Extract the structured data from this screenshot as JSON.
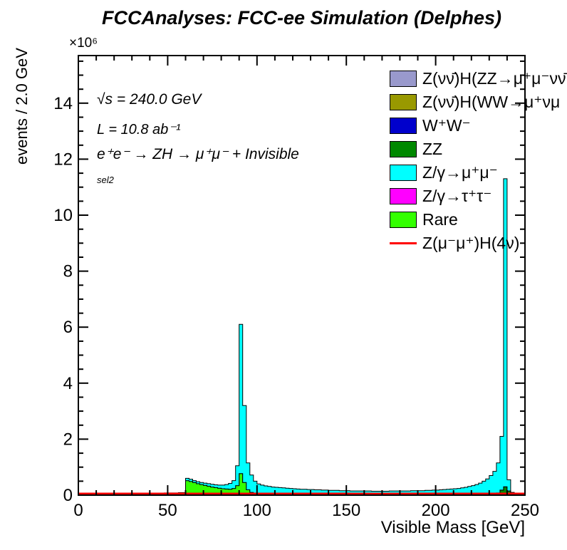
{
  "title": "FCCAnalyses: FCC-ee Simulation (Delphes)",
  "annotations": {
    "energy": "√s = 240.0 GeV",
    "luminosity": "L = 10.8 ab⁻¹",
    "process": "e⁺e⁻ → ZH → μ⁺μ⁻ + Invisible",
    "selection": "sel2"
  },
  "chart_data": {
    "type": "bar",
    "subtype": "stacked-step-histogram",
    "bin_width": 2.0,
    "x_start": 0,
    "n_bins": 125,
    "y_unit_scale": "×10⁶",
    "axes": {
      "x_label": "Visible Mass [GeV]",
      "y_label": "events / 2.0 GeV",
      "y_exponent": "×10⁶",
      "x_range": [
        0,
        250
      ],
      "y_range": [
        0,
        15.7
      ],
      "x_ticks": [
        0,
        50,
        100,
        150,
        200,
        250
      ],
      "x_tick_labels": [
        "0",
        "50",
        "100",
        "150",
        "200",
        "250"
      ],
      "x_minor_step": 10,
      "y_ticks": [
        0,
        2,
        4,
        6,
        8,
        10,
        12,
        14
      ],
      "y_tick_labels": [
        "0",
        "2",
        "4",
        "6",
        "8",
        "10",
        "12",
        "14"
      ],
      "y_minor_step": 0.5,
      "grid": false,
      "legend_position": "top-right"
    },
    "stack_order": [
      "znnh_zz",
      "znnh_ww",
      "ww",
      "zz",
      "ztautau",
      "rare",
      "zmumu"
    ],
    "series": [
      {
        "name": "znnh_zz",
        "label": "Z(νν̄)H(ZZ→μ⁺μ⁻νν̄",
        "color": "#9999cc",
        "role": "stack",
        "first_bin": 0,
        "values": []
      },
      {
        "name": "znnh_ww",
        "label": "Z(νν̄)H(WW→μ⁺νμ",
        "color": "#999900",
        "role": "stack",
        "first_bin": 0,
        "values": []
      },
      {
        "name": "ww",
        "label": "W⁺W⁻",
        "color": "#0000cc",
        "role": "stack",
        "first_bin": 43,
        "values": [
          0.02,
          0.04,
          0.05,
          0.03,
          0.01
        ]
      },
      {
        "name": "zz",
        "label": "ZZ",
        "color": "#008800",
        "role": "stack",
        "first_bin": 116,
        "values": [
          0.03,
          0.08,
          0.18,
          0.3,
          0.15,
          0.04
        ]
      },
      {
        "name": "zmumu",
        "label": "Z/γ→μ⁺μ⁻",
        "color": "#00ffff",
        "role": "stack",
        "first_bin": 0,
        "values": [
          0,
          0,
          0,
          0,
          0.01,
          0.02,
          0.03,
          0.03,
          0.03,
          0.04,
          0.05,
          0.05,
          0.06,
          0.06,
          0.06,
          0.06,
          0.06,
          0.06,
          0.06,
          0.07,
          0.07,
          0.07,
          0.07,
          0.07,
          0.08,
          0.08,
          0.08,
          0.08,
          0.09,
          0.09,
          0.08,
          0.08,
          0.07,
          0.07,
          0.07,
          0.08,
          0.09,
          0.1,
          0.1,
          0.11,
          0.13,
          0.16,
          0.21,
          0.28,
          0.71,
          5.33,
          2.75,
          0.96,
          0.62,
          0.44,
          0.36,
          0.34,
          0.32,
          0.31,
          0.29,
          0.28,
          0.27,
          0.26,
          0.25,
          0.24,
          0.23,
          0.22,
          0.21,
          0.21,
          0.2,
          0.2,
          0.19,
          0.19,
          0.18,
          0.18,
          0.17,
          0.17,
          0.17,
          0.16,
          0.16,
          0.16,
          0.15,
          0.15,
          0.15,
          0.15,
          0.15,
          0.15,
          0.14,
          0.14,
          0.14,
          0.14,
          0.14,
          0.15,
          0.15,
          0.15,
          0.15,
          0.15,
          0.15,
          0.16,
          0.16,
          0.16,
          0.16,
          0.17,
          0.17,
          0.18,
          0.18,
          0.19,
          0.2,
          0.21,
          0.22,
          0.23,
          0.24,
          0.26,
          0.28,
          0.31,
          0.34,
          0.38,
          0.43,
          0.5,
          0.58,
          0.7,
          0.82,
          1.07,
          1.92,
          11.0,
          0.4,
          0.06,
          0.03,
          0.01,
          0.01
        ]
      },
      {
        "name": "ztautau",
        "label": "Z/γ→τ⁺τ⁻",
        "color": "#ff00ff",
        "role": "stack",
        "first_bin": 0,
        "values": []
      },
      {
        "name": "rare",
        "label": "Rare",
        "color": "#33ff00",
        "role": "stack",
        "first_bin": 30,
        "values": [
          0.52,
          0.49,
          0.45,
          0.41,
          0.38,
          0.35,
          0.32,
          0.29,
          0.27,
          0.25,
          0.23,
          0.22,
          0.21,
          0.22,
          0.3,
          0.72,
          0.42,
          0.18,
          0.1,
          0.06,
          0.04,
          0.02,
          0.01
        ]
      },
      {
        "name": "signal",
        "label": "Z(μ⁻μ⁺)H(4ν)",
        "color": "#ff0000",
        "role": "line",
        "flat_value": 0.05
      }
    ]
  }
}
